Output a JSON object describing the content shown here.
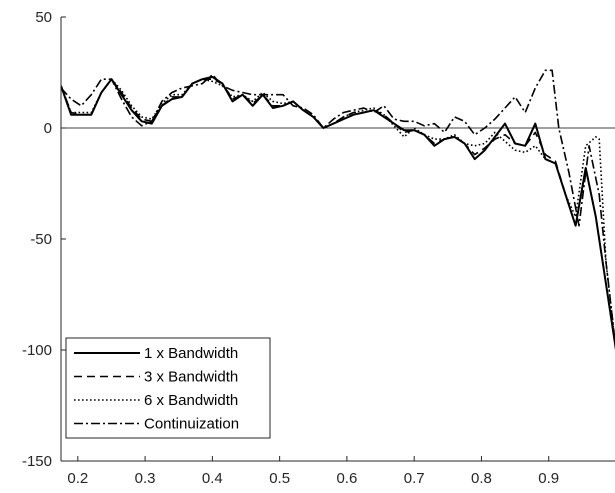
{
  "chart_data": {
    "type": "line",
    "title": "",
    "xlabel": "",
    "ylabel": "",
    "xlim": [
      0.175,
      1.0
    ],
    "ylim": [
      -150,
      50
    ],
    "xticks": [
      0.2,
      0.3,
      0.4,
      0.5,
      0.6,
      0.7,
      0.8,
      0.9
    ],
    "xtick_labels": [
      "0.2",
      "0.3",
      "0.4",
      "0.5",
      "0.6",
      "0.7",
      "0.8",
      "0.9"
    ],
    "yticks": [
      50,
      0,
      -50,
      -100,
      -150
    ],
    "ytick_labels": [
      "50",
      "0",
      "-50",
      "-100",
      "-150"
    ],
    "reference_line_y": 0,
    "grid": false,
    "legend_position": "bottom-left",
    "series": [
      {
        "name": "1 x Bandwidth",
        "style": "solid",
        "x": [
          0.175,
          0.19,
          0.205,
          0.22,
          0.235,
          0.25,
          0.265,
          0.28,
          0.295,
          0.31,
          0.325,
          0.34,
          0.355,
          0.37,
          0.385,
          0.4,
          0.415,
          0.43,
          0.445,
          0.46,
          0.475,
          0.49,
          0.505,
          0.52,
          0.535,
          0.55,
          0.565,
          0.58,
          0.595,
          0.61,
          0.625,
          0.64,
          0.655,
          0.67,
          0.685,
          0.7,
          0.715,
          0.73,
          0.745,
          0.76,
          0.775,
          0.79,
          0.805,
          0.82,
          0.835,
          0.85,
          0.865,
          0.88,
          0.895,
          0.91,
          0.925,
          0.94,
          0.955,
          0.97,
          0.985,
          1.0
        ],
        "y": [
          19,
          6,
          6,
          6,
          16,
          22,
          15,
          8,
          3,
          2,
          10,
          13,
          14,
          20,
          22,
          23,
          20,
          12,
          15,
          10,
          15,
          9,
          10,
          12,
          8,
          5,
          0,
          2,
          4,
          6,
          7,
          8,
          5,
          2,
          -1,
          -1,
          -3,
          -8,
          -5,
          -4,
          -7,
          -14,
          -10,
          -4,
          2,
          -7,
          -8,
          2,
          -14,
          -16,
          -30,
          -44,
          -18,
          -40,
          -70,
          -100
        ]
      },
      {
        "name": "3 x Bandwidth",
        "style": "dashed",
        "x": [
          0.175,
          0.19,
          0.205,
          0.22,
          0.235,
          0.25,
          0.265,
          0.28,
          0.295,
          0.31,
          0.325,
          0.34,
          0.355,
          0.37,
          0.385,
          0.4,
          0.415,
          0.43,
          0.445,
          0.46,
          0.475,
          0.49,
          0.505,
          0.52,
          0.535,
          0.55,
          0.565,
          0.58,
          0.595,
          0.61,
          0.625,
          0.64,
          0.655,
          0.67,
          0.685,
          0.7,
          0.715,
          0.73,
          0.745,
          0.76,
          0.775,
          0.79,
          0.805,
          0.82,
          0.835,
          0.85,
          0.865,
          0.88,
          0.895,
          0.91,
          0.925,
          0.94,
          0.955,
          0.97,
          0.985,
          1.0
        ],
        "y": [
          19,
          7,
          6,
          6,
          16,
          22,
          16,
          9,
          4,
          3,
          10,
          14,
          14,
          20,
          22,
          22,
          20,
          13,
          15,
          11,
          15,
          10,
          10,
          12,
          8,
          5,
          0,
          2,
          5,
          7,
          7,
          8,
          6,
          2,
          -2,
          -1,
          -3,
          -7,
          -5,
          -4,
          -7,
          -12,
          -9,
          -5,
          -3,
          -7,
          -8,
          -2,
          -12,
          -15,
          -30,
          -44,
          -18,
          -40,
          -70,
          -100
        ]
      },
      {
        "name": "6 x Bandwidth",
        "style": "dotted",
        "x": [
          0.175,
          0.19,
          0.205,
          0.22,
          0.235,
          0.25,
          0.265,
          0.28,
          0.295,
          0.31,
          0.325,
          0.34,
          0.355,
          0.37,
          0.385,
          0.4,
          0.415,
          0.43,
          0.445,
          0.46,
          0.475,
          0.49,
          0.505,
          0.52,
          0.535,
          0.55,
          0.565,
          0.58,
          0.595,
          0.61,
          0.625,
          0.64,
          0.655,
          0.67,
          0.685,
          0.7,
          0.715,
          0.73,
          0.745,
          0.76,
          0.775,
          0.79,
          0.805,
          0.82,
          0.835,
          0.85,
          0.865,
          0.88,
          0.895,
          0.91,
          0.925,
          0.94,
          0.955,
          0.97,
          0.975,
          0.985,
          1.0
        ],
        "y": [
          19,
          7,
          7,
          7,
          16,
          22,
          17,
          10,
          5,
          4,
          11,
          15,
          15,
          20,
          22,
          21,
          19,
          14,
          15,
          12,
          16,
          12,
          11,
          12,
          8,
          5,
          0,
          2,
          5,
          7,
          8,
          9,
          6,
          1,
          -4,
          0,
          -3,
          -5,
          -5,
          -3,
          -7,
          -8,
          -7,
          -2,
          -6,
          -10,
          -11,
          -8,
          -14,
          -16,
          -30,
          -40,
          -8,
          -4,
          -5,
          -60,
          -100
        ]
      },
      {
        "name": "Continuization",
        "style": "dashdot",
        "x": [
          0.175,
          0.19,
          0.205,
          0.22,
          0.235,
          0.25,
          0.265,
          0.28,
          0.295,
          0.31,
          0.325,
          0.34,
          0.355,
          0.37,
          0.385,
          0.4,
          0.415,
          0.43,
          0.445,
          0.46,
          0.475,
          0.49,
          0.505,
          0.52,
          0.535,
          0.55,
          0.565,
          0.58,
          0.595,
          0.61,
          0.625,
          0.64,
          0.655,
          0.67,
          0.685,
          0.7,
          0.715,
          0.73,
          0.745,
          0.76,
          0.775,
          0.79,
          0.805,
          0.82,
          0.835,
          0.85,
          0.865,
          0.88,
          0.895,
          0.905,
          0.915,
          0.93,
          0.945,
          0.96,
          0.975,
          0.985,
          1.0
        ],
        "y": [
          18,
          13,
          10,
          15,
          22,
          22,
          13,
          5,
          1,
          3,
          12,
          16,
          18,
          19,
          20,
          24,
          19,
          17,
          16,
          15,
          15,
          15,
          15,
          10,
          9,
          6,
          0,
          4,
          7,
          8,
          9,
          7,
          10,
          4,
          3,
          3,
          1,
          2,
          -2,
          5,
          3,
          -3,
          0,
          4,
          9,
          14,
          7,
          18,
          26,
          26,
          0,
          -20,
          -44,
          -8,
          -30,
          -60,
          -100
        ]
      }
    ]
  }
}
